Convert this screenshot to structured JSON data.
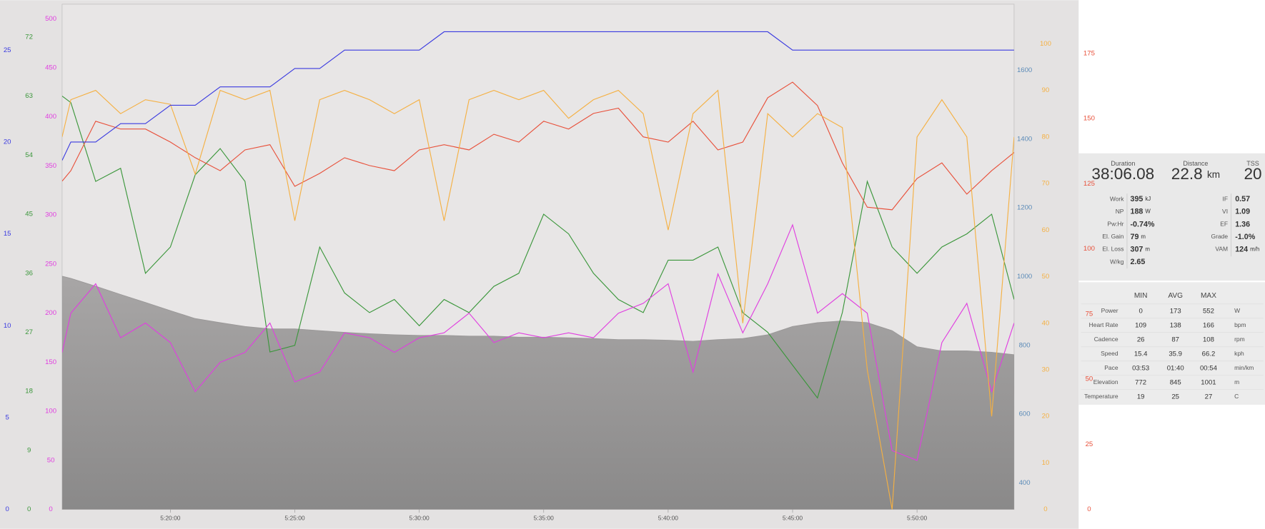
{
  "chart_data": {
    "type": "line",
    "x": [
      315.65,
      316,
      317,
      318,
      319,
      320,
      321,
      322,
      323,
      324,
      325,
      326,
      327,
      328,
      329,
      330,
      331,
      332,
      333,
      334,
      335,
      336,
      337,
      338,
      339,
      340,
      341,
      342,
      343,
      344,
      345,
      346,
      347,
      348,
      349,
      350,
      351,
      352,
      353,
      353.9
    ],
    "xlim": [
      315.65,
      353.9
    ],
    "xticks": [
      {
        "value": 320,
        "label": "5:20:00"
      },
      {
        "value": 325,
        "label": "5:25:00"
      },
      {
        "value": 330,
        "label": "5:30:00"
      },
      {
        "value": 335,
        "label": "5:35:00"
      },
      {
        "value": 340,
        "label": "5:40:00"
      },
      {
        "value": 345,
        "label": "5:45:00"
      },
      {
        "value": 350,
        "label": "5:50:00"
      }
    ],
    "series": [
      {
        "type": "area",
        "color": "#9a9898",
        "axis_color": "#5b8bb8",
        "ylim": [
          323,
          1792
        ],
        "yticks": [
          400,
          600,
          800,
          1000,
          1200,
          1400,
          1600
        ],
        "values": [
          1001,
          995,
          972,
          948,
          925,
          901,
          878,
          866,
          855,
          848,
          848,
          843,
          838,
          834,
          831,
          829,
          829,
          827,
          827,
          824,
          824,
          822,
          820,
          817,
          817,
          815,
          812,
          817,
          820,
          831,
          855,
          866,
          871,
          866,
          843,
          796,
          784,
          784,
          780,
          773
        ]
      },
      {
        "type": "line",
        "color": "#3a963a",
        "axis_color": "#3a963a",
        "ylim": [
          0,
          77
        ],
        "yticks": [
          0,
          9,
          18,
          27,
          36,
          45,
          54,
          63,
          72
        ],
        "values": [
          63,
          62,
          50,
          52,
          36,
          40,
          51,
          55,
          50,
          24,
          25,
          40,
          33,
          30,
          32,
          28,
          32,
          30,
          34,
          36,
          45,
          42,
          36,
          32,
          30,
          38,
          38,
          40,
          30,
          27,
          22,
          17,
          30,
          50,
          40,
          36,
          40,
          42,
          45,
          32
        ]
      },
      {
        "type": "line",
        "color": "#e03ee0",
        "axis_color": "#e03ee0",
        "ylim": [
          0,
          514.8
        ],
        "yticks": [
          0,
          50,
          100,
          150,
          200,
          250,
          300,
          350,
          400,
          450,
          500
        ],
        "values": [
          160,
          200,
          230,
          175,
          190,
          170,
          120,
          150,
          160,
          190,
          130,
          140,
          180,
          175,
          160,
          175,
          180,
          200,
          170,
          180,
          175,
          180,
          175,
          200,
          210,
          230,
          140,
          240,
          180,
          230,
          290,
          200,
          220,
          200,
          60,
          50,
          170,
          210,
          120,
          190
        ]
      },
      {
        "type": "line",
        "color": "#e8503a",
        "axis_color": "#e8503a",
        "ylim": [
          0,
          193.9
        ],
        "yticks": [
          0,
          25,
          50,
          75,
          100,
          125,
          150,
          175
        ],
        "values": [
          126,
          130,
          149,
          146,
          146,
          141,
          135,
          130,
          138,
          140,
          124,
          129,
          135,
          132,
          130,
          138,
          140,
          138,
          144,
          141,
          149,
          146,
          152,
          154,
          143,
          141,
          149,
          138,
          141,
          158,
          164,
          155,
          133,
          116,
          115,
          127,
          133,
          121,
          130,
          137
        ]
      },
      {
        "type": "line",
        "color": "#f5b042",
        "axis_color": "#f5b042",
        "ylim": [
          0,
          108.5
        ],
        "yticks": [
          0,
          10,
          20,
          30,
          40,
          50,
          60,
          70,
          80,
          90,
          100
        ],
        "values": [
          80,
          88,
          90,
          85,
          88,
          87,
          72,
          90,
          88,
          90,
          62,
          88,
          90,
          88,
          85,
          88,
          62,
          88,
          90,
          88,
          90,
          84,
          88,
          90,
          85,
          60,
          85,
          90,
          40,
          85,
          80,
          85,
          82,
          30,
          0,
          80,
          88,
          80,
          20,
          80
        ]
      },
      {
        "type": "line",
        "color": "#3a3ae0",
        "axis_color": "#3a3ae0",
        "ylim": [
          0,
          27.5
        ],
        "yticks": [
          0,
          5,
          10,
          15,
          20,
          25
        ],
        "values": [
          19,
          20,
          20,
          21,
          21,
          22,
          22,
          23,
          23,
          23,
          24,
          24,
          25,
          25,
          25,
          25,
          26,
          26,
          26,
          26,
          26,
          26,
          26,
          26,
          26,
          26,
          26,
          26,
          26,
          26,
          25,
          25,
          25,
          25,
          25,
          25,
          25,
          25,
          25,
          25
        ]
      }
    ]
  },
  "summary": {
    "headline": [
      {
        "label": "Duration",
        "value": "38:06.08"
      },
      {
        "label": "Distance",
        "value": "22.8",
        "unit": "km"
      },
      {
        "label": "TSS",
        "value": "20"
      }
    ],
    "left": [
      {
        "label": "Work",
        "value": "395",
        "unit": "kJ"
      },
      {
        "label": "NP",
        "value": "188",
        "unit": "W"
      },
      {
        "label": "Pw:Hr",
        "value": "-0.74%"
      },
      {
        "label": "El. Gain",
        "value": "79",
        "unit": "m"
      },
      {
        "label": "El. Loss",
        "value": "307",
        "unit": "m"
      },
      {
        "label": "W/kg",
        "value": "2.65"
      }
    ],
    "right": [
      {
        "label": "IF",
        "value": "0.57"
      },
      {
        "label": "VI",
        "value": "1.09"
      },
      {
        "label": "EF",
        "value": "1.36"
      },
      {
        "label": "Grade",
        "value": "-1.0%"
      },
      {
        "label": "VAM",
        "value": "124",
        "unit": "m/h"
      }
    ]
  },
  "table": {
    "columns": [
      "MIN",
      "AVG",
      "MAX"
    ],
    "rows": [
      [
        "Power",
        "0",
        "173",
        "552",
        "W"
      ],
      [
        "Heart Rate",
        "109",
        "138",
        "166",
        "bpm"
      ],
      [
        "Cadence",
        "26",
        "87",
        "108",
        "rpm"
      ],
      [
        "Speed",
        "15.4",
        "35.9",
        "66.2",
        "kph"
      ],
      [
        "Pace",
        "03:53",
        "01:40",
        "00:54",
        "min/km"
      ],
      [
        "Elevation",
        "772",
        "845",
        "1001",
        "m"
      ],
      [
        "Temperature",
        "19",
        "25",
        "27",
        "C"
      ]
    ]
  }
}
